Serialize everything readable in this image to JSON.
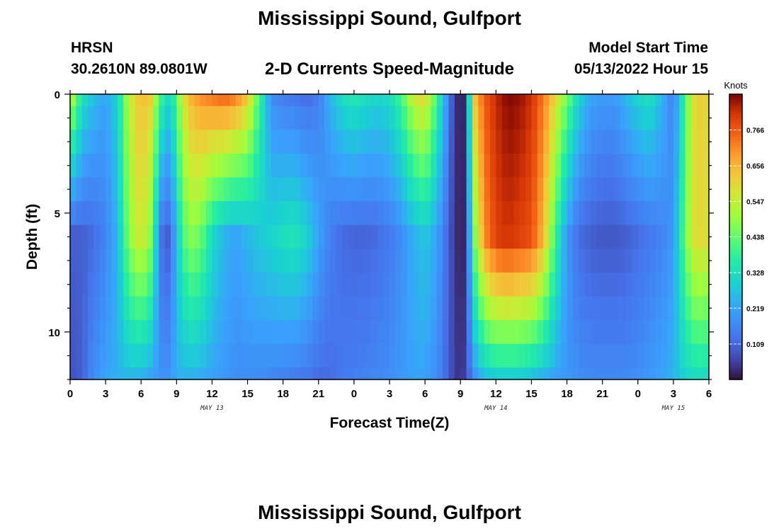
{
  "header": {
    "title": "Mississippi Sound, Gulfport",
    "station_code": "HRSN",
    "coordinates": "30.2610N  89.0801W",
    "subtitle": "2-D Currents Speed-Magnitude",
    "model_start_label": "Model Start Time",
    "model_start_value": "05/13/2022 Hour 15",
    "bottom_title": "Mississippi Sound, Gulfport"
  },
  "chart_data": {
    "type": "heatmap",
    "xlabel": "Forecast Time(Z)",
    "ylabel": "Depth (ft)",
    "colorbar_label": "Knots",
    "x_range_hours": [
      0,
      54
    ],
    "x_ticks": [
      {
        "h": 0,
        "label": "0"
      },
      {
        "h": 3,
        "label": "3"
      },
      {
        "h": 6,
        "label": "6"
      },
      {
        "h": 9,
        "label": "9"
      },
      {
        "h": 12,
        "label": "12"
      },
      {
        "h": 15,
        "label": "15"
      },
      {
        "h": 18,
        "label": "18"
      },
      {
        "h": 21,
        "label": "21"
      },
      {
        "h": 24,
        "label": "0"
      },
      {
        "h": 27,
        "label": "3"
      },
      {
        "h": 30,
        "label": "6"
      },
      {
        "h": 33,
        "label": "9"
      },
      {
        "h": 36,
        "label": "12"
      },
      {
        "h": 39,
        "label": "15"
      },
      {
        "h": 42,
        "label": "18"
      },
      {
        "h": 45,
        "label": "21"
      },
      {
        "h": 48,
        "label": "0"
      },
      {
        "h": 51,
        "label": "3"
      },
      {
        "h": 54,
        "label": "6"
      }
    ],
    "date_labels": [
      {
        "h": 12,
        "label": "MAY 13"
      },
      {
        "h": 36,
        "label": "MAY 14"
      },
      {
        "h": 51,
        "label": "MAY 15"
      }
    ],
    "y_range_ft": [
      0,
      12
    ],
    "y_ticks": [
      0,
      5,
      10
    ],
    "colorbar_range": [
      0.0,
      0.876
    ],
    "colorbar_ticks": [
      "0.109",
      "0.219",
      "0.328",
      "0.438",
      "0.547",
      "0.656",
      "0.766"
    ],
    "depth_levels": [
      0,
      1,
      2,
      3,
      4,
      5,
      6,
      7,
      8,
      9,
      10,
      11,
      12
    ],
    "time_hours": [
      0,
      1,
      2,
      3,
      4,
      5,
      6,
      7,
      7.5,
      8,
      8.5,
      9,
      10,
      11,
      12,
      13,
      14,
      15,
      16,
      17,
      18,
      19,
      20,
      21,
      22,
      23,
      24,
      25,
      26,
      27,
      28,
      29,
      30,
      31,
      32,
      32.5,
      33,
      33.5,
      34,
      35,
      36,
      37,
      38,
      39,
      40,
      41,
      42,
      43,
      44,
      45,
      46,
      47,
      48,
      49,
      50,
      51,
      52,
      52.5,
      53,
      54
    ],
    "profiles": {
      "surface": [
        0.55,
        0.33,
        0.26,
        0.22,
        0.3,
        0.55,
        0.65,
        0.6,
        0.4,
        0.36,
        0.28,
        0.45,
        0.64,
        0.7,
        0.72,
        0.74,
        0.71,
        0.62,
        0.4,
        0.18,
        0.15,
        0.14,
        0.12,
        0.15,
        0.25,
        0.32,
        0.35,
        0.32,
        0.3,
        0.32,
        0.4,
        0.55,
        0.6,
        0.4,
        0.16,
        0.04,
        0.02,
        0.03,
        0.6,
        0.76,
        0.83,
        0.87,
        0.86,
        0.82,
        0.73,
        0.6,
        0.45,
        0.3,
        0.22,
        0.2,
        0.2,
        0.25,
        0.3,
        0.33,
        0.25,
        0.15,
        0.4,
        0.55,
        0.62,
        0.6
      ],
      "mid": [
        0.1,
        0.1,
        0.12,
        0.16,
        0.25,
        0.48,
        0.58,
        0.45,
        0.15,
        0.1,
        0.1,
        0.28,
        0.48,
        0.45,
        0.32,
        0.25,
        0.22,
        0.25,
        0.28,
        0.3,
        0.33,
        0.34,
        0.3,
        0.22,
        0.15,
        0.12,
        0.11,
        0.11,
        0.12,
        0.14,
        0.18,
        0.24,
        0.28,
        0.22,
        0.1,
        0.04,
        0.02,
        0.03,
        0.4,
        0.7,
        0.8,
        0.82,
        0.8,
        0.78,
        0.65,
        0.4,
        0.2,
        0.12,
        0.1,
        0.09,
        0.09,
        0.1,
        0.12,
        0.14,
        0.16,
        0.2,
        0.45,
        0.55,
        0.6,
        0.58
      ],
      "bottom": [
        0.08,
        0.1,
        0.18,
        0.22,
        0.24,
        0.26,
        0.25,
        0.22,
        0.2,
        0.18,
        0.2,
        0.24,
        0.25,
        0.24,
        0.22,
        0.2,
        0.18,
        0.18,
        0.18,
        0.17,
        0.16,
        0.15,
        0.14,
        0.12,
        0.12,
        0.14,
        0.15,
        0.16,
        0.17,
        0.18,
        0.2,
        0.22,
        0.22,
        0.18,
        0.1,
        0.05,
        0.04,
        0.06,
        0.18,
        0.27,
        0.3,
        0.3,
        0.3,
        0.28,
        0.25,
        0.22,
        0.2,
        0.18,
        0.17,
        0.17,
        0.17,
        0.17,
        0.18,
        0.2,
        0.22,
        0.25,
        0.3,
        0.32,
        0.33,
        0.32
      ]
    }
  }
}
